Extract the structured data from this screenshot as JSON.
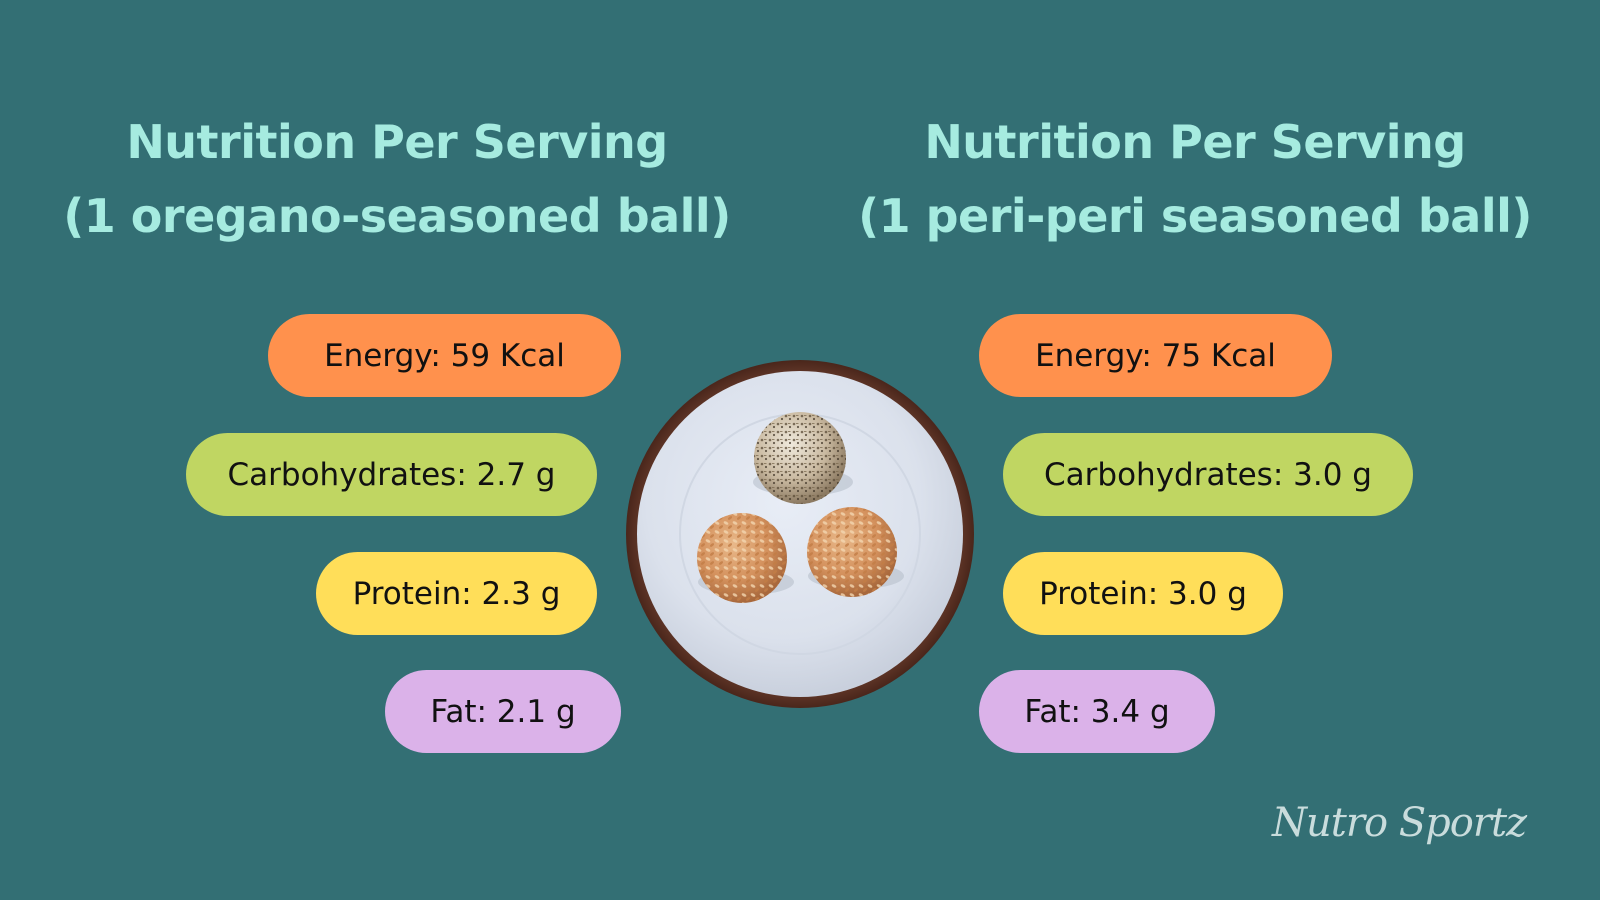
{
  "left": {
    "title_line1": "Nutrition Per Serving",
    "title_line2": "(1 oregano-seasoned ball)",
    "energy": "Energy: 59 Kcal",
    "carbohydrates": "Carbohydrates: 2.7 g",
    "protein": "Protein: 2.3 g",
    "fat": "Fat: 2.1 g"
  },
  "right": {
    "title_line1": "Nutrition Per Serving",
    "title_line2": "(1 peri-peri seasoned ball)",
    "energy": "Energy: 75 Kcal",
    "carbohydrates": "Carbohydrates: 3.0 g",
    "protein": "Protein: 3.0 g",
    "fat": "Fat: 3.4 g"
  },
  "watermark": "Nutro Sportz",
  "colors": {
    "background": "#336f74",
    "title": "#a6ebe0",
    "energy": "#ff914d",
    "carbohydrates": "#c0d662",
    "protein": "#ffde59",
    "fat": "#dbb2e9"
  },
  "photo": "plate-with-three-seasoned-balls"
}
